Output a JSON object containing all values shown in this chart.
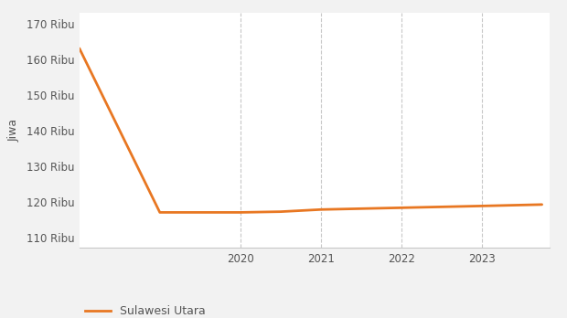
{
  "x": [
    2018,
    2019,
    2020,
    2020.5,
    2021,
    2022,
    2023,
    2023.75
  ],
  "y": [
    163000,
    117000,
    117000,
    117200,
    117800,
    118300,
    118800,
    119200
  ],
  "line_color": "#E87722",
  "line_width": 2.0,
  "ylabel": "Jiwa",
  "ylim": [
    107000,
    173000
  ],
  "yticks": [
    110000,
    120000,
    130000,
    140000,
    150000,
    160000,
    170000
  ],
  "ytick_labels": [
    "110 Ribu",
    "120 Ribu",
    "130 Ribu",
    "140 Ribu",
    "150 Ribu",
    "160 Ribu",
    "170 Ribu"
  ],
  "xticks": [
    2020,
    2021,
    2022,
    2023
  ],
  "xlim": [
    2018.0,
    2023.85
  ],
  "grid_color": "#c8c8c8",
  "background_color": "#f2f2f2",
  "plot_bg_color": "#ffffff",
  "legend_label": "Sulawesi Utara",
  "tick_color": "#555555",
  "tick_fontsize": 8.5,
  "ylabel_fontsize": 9,
  "legend_fontsize": 9
}
